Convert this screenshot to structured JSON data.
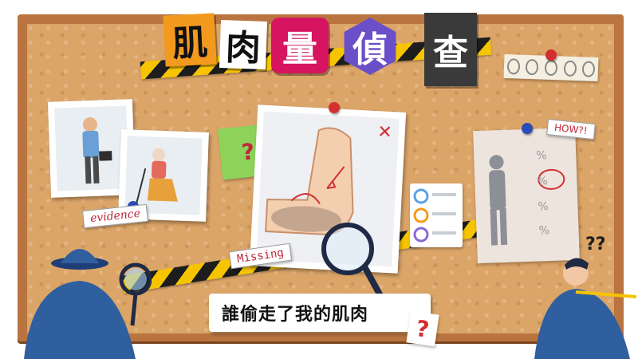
{
  "title": {
    "chars": [
      "肌",
      "肉",
      "量",
      "偵",
      "查"
    ],
    "colors": [
      "#f39a1e",
      "#ffffff",
      "#d6145f",
      "#6a4fc8",
      "#3a3a3a"
    ]
  },
  "labels": {
    "evidence": "evidence",
    "missing": "Missing",
    "how": "HOW?!",
    "caption": "誰偷走了我的肌肉",
    "question": "?",
    "double_question": "??",
    "x_mark": "✕",
    "percent": "%"
  },
  "colors": {
    "cork": "#dca568",
    "frame": "#b9743f",
    "tape_yellow": "#f6c400",
    "tape_black": "#1d1d1d",
    "accent_red": "#d32f2f",
    "green_note": "#8dd35a",
    "detective_blue": "#2f5f9e"
  },
  "icons": [
    "pin-icon",
    "magnifier-icon",
    "question-icon",
    "footprint-icon"
  ]
}
